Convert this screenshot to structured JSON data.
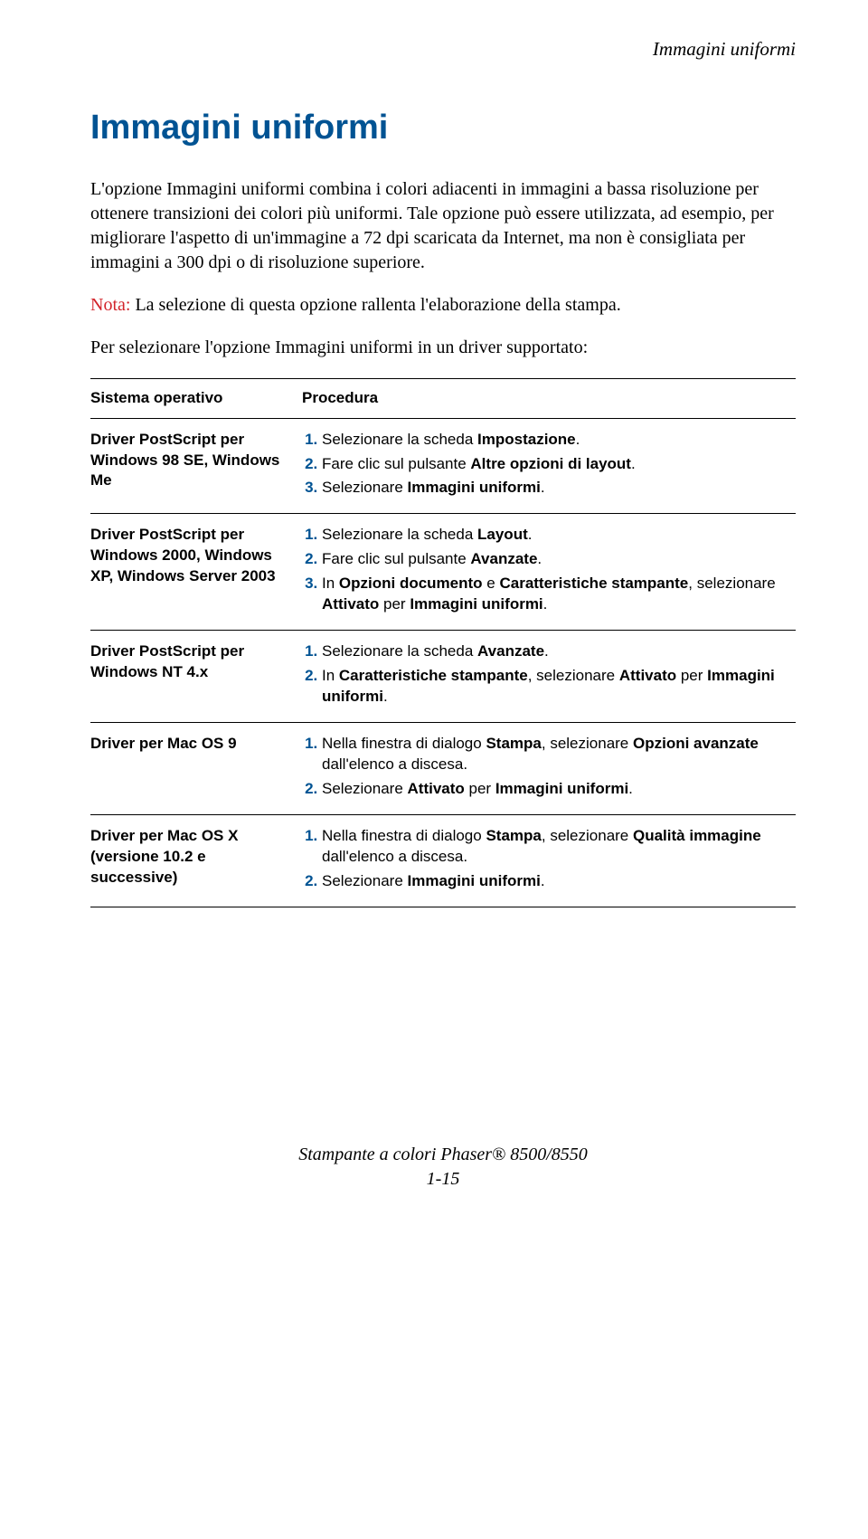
{
  "header": {
    "running_title": "Immagini uniformi"
  },
  "title": "Immagini uniformi",
  "paragraphs": {
    "p1": "L'opzione Immagini uniformi combina i colori adiacenti in immagini a bassa risoluzione per ottenere transizioni dei colori più uniformi. Tale opzione può essere utilizzata, ad esempio, per migliorare l'aspetto di un'immagine a 72 dpi scaricata da Internet, ma non è consigliata per immagini a 300 dpi o di risoluzione superiore.",
    "nota_label": "Nota:",
    "nota_text": " La selezione di questa opzione rallenta l'elaborazione della stampa.",
    "p3": "Per selezionare l'opzione Immagini uniformi in un driver supportato:"
  },
  "table": {
    "head_col1": "Sistema operativo",
    "head_col2": "Procedura",
    "rows": [
      {
        "os": "Driver PostScript per Windows 98 SE, Windows Me",
        "steps": [
          {
            "pre": "Selezionare la scheda ",
            "bold": "Impostazione",
            "post": "."
          },
          {
            "pre": "Fare clic sul pulsante ",
            "bold": "Altre opzioni di layout",
            "post": "."
          },
          {
            "pre": "Selezionare ",
            "bold": "Immagini uniformi",
            "post": "."
          }
        ]
      },
      {
        "os": "Driver PostScript per Windows 2000, Windows XP, Windows Server 2003",
        "steps": [
          {
            "pre": "Selezionare la scheda ",
            "bold": "Layout",
            "post": "."
          },
          {
            "pre": "Fare clic sul pulsante ",
            "bold": "Avanzate",
            "post": "."
          },
          {
            "pre": "In ",
            "bold": "Opzioni documento",
            "mid": " e ",
            "bold2": "Caratteristiche stampante",
            "post2": ", selezionare ",
            "bold3": "Attivato",
            "post3": " per ",
            "bold4": "Immagini uniformi",
            "post4": "."
          }
        ]
      },
      {
        "os": "Driver PostScript per Windows NT 4.x",
        "steps": [
          {
            "pre": "Selezionare la scheda ",
            "bold": "Avanzate",
            "post": "."
          },
          {
            "pre": "In ",
            "bold": "Caratteristiche stampante",
            "mid": ", selezionare ",
            "bold2": "Attivato",
            "post2": " per ",
            "bold3": "Immagini uniformi",
            "post3": "."
          }
        ]
      },
      {
        "os": "Driver per Mac OS 9",
        "steps": [
          {
            "pre": "Nella finestra di dialogo ",
            "bold": "Stampa",
            "mid": ", selezionare ",
            "bold2": "Opzioni avanzate",
            "post2": " dall'elenco a discesa."
          },
          {
            "pre": "Selezionare ",
            "bold": "Attivato",
            "mid": " per ",
            "bold2": "Immagini uniformi",
            "post2": "."
          }
        ]
      },
      {
        "os": "Driver per Mac OS X (versione 10.2 e successive)",
        "steps": [
          {
            "pre": "Nella finestra di dialogo ",
            "bold": "Stampa",
            "mid": ", selezionare ",
            "bold2": "Qualità immagine",
            "post2": " dall'elenco a discesa."
          },
          {
            "pre": "Selezionare ",
            "bold": "Immagini uniformi",
            "post": "."
          }
        ]
      }
    ]
  },
  "footer": {
    "line": "Stampante a colori Phaser® 8500/8550",
    "page": "1-15"
  }
}
